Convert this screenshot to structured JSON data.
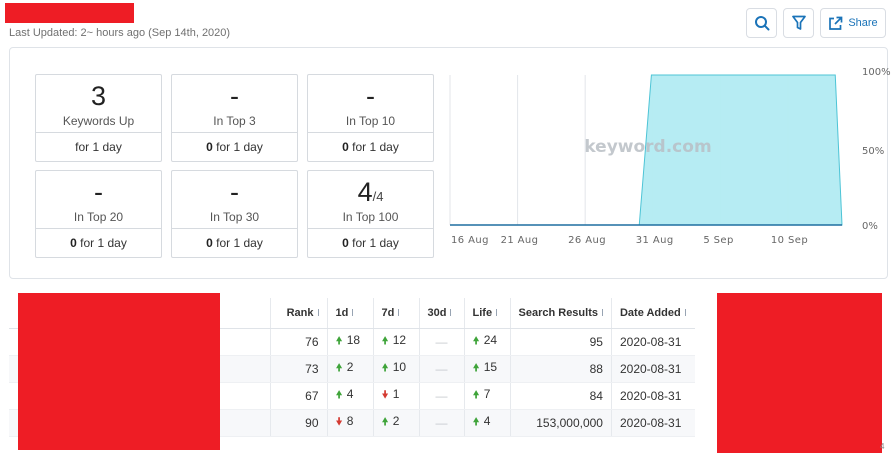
{
  "header": {
    "last_updated": "Last Updated: 2~ hours ago (Sep 14th, 2020)",
    "share_label": "Share",
    "icons": [
      "search-icon",
      "filter-icon",
      "share-icon"
    ]
  },
  "stats": [
    {
      "value": "3",
      "total": "",
      "label": "Keywords Up",
      "count": "",
      "period": "for 1 day"
    },
    {
      "value": "-",
      "total": "",
      "label": "In Top 3",
      "count": "0",
      "period": " for 1 day"
    },
    {
      "value": "-",
      "total": "",
      "label": "In Top 10",
      "count": "0",
      "period": " for 1 day"
    },
    {
      "value": "-",
      "total": "",
      "label": "In Top 20",
      "count": "0",
      "period": " for 1 day"
    },
    {
      "value": "-",
      "total": "",
      "label": "In Top 30",
      "count": "0",
      "period": " for 1 day"
    },
    {
      "value": "4",
      "total": "/4",
      "label": "In Top 100",
      "count": "0",
      "period": " for 1 day"
    }
  ],
  "chart_data": {
    "type": "area",
    "watermark": "keyword.com",
    "x_ticks": [
      "16 Aug",
      "21 Aug",
      "26 Aug",
      "31 Aug",
      "5 Sep",
      "10 Sep"
    ],
    "x_tick_days": [
      0,
      5,
      10,
      15,
      20,
      25
    ],
    "y_ticks": [
      "100%",
      "50%",
      "0%"
    ],
    "ylim": [
      0,
      100
    ],
    "xlim_days": [
      0,
      29
    ],
    "series": [
      {
        "x_days": [
          0,
          14,
          14.9,
          28.5,
          29
        ],
        "values": [
          0,
          0,
          100,
          100,
          0
        ]
      }
    ],
    "colors": {
      "fill": "#b2ebf2",
      "line": "#4dc4d6",
      "baseline": "#1f6fa0",
      "grid": "#e3e6ea"
    }
  },
  "table": {
    "columns": [
      "Rank",
      "1d",
      "7d",
      "30d",
      "Life",
      "Search Results",
      "Date Added"
    ],
    "rows": [
      {
        "rank": "76",
        "d1": {
          "dir": "up",
          "v": "18"
        },
        "d7": {
          "dir": "up",
          "v": "12"
        },
        "d30": "—",
        "life": {
          "dir": "up",
          "v": "24"
        },
        "results": "95",
        "date": "2020-08-31"
      },
      {
        "rank": "73",
        "d1": {
          "dir": "up",
          "v": "2"
        },
        "d7": {
          "dir": "up",
          "v": "10"
        },
        "d30": "—",
        "life": {
          "dir": "up",
          "v": "15"
        },
        "results": "88",
        "date": "2020-08-31"
      },
      {
        "rank": "67",
        "d1": {
          "dir": "up",
          "v": "4"
        },
        "d7": {
          "dir": "down",
          "v": "1"
        },
        "d30": "—",
        "life": {
          "dir": "up",
          "v": "7"
        },
        "results": "84",
        "date": "2020-08-31"
      },
      {
        "rank": "90",
        "d1": {
          "dir": "down",
          "v": "8"
        },
        "d7": {
          "dir": "up",
          "v": "2"
        },
        "d30": "—",
        "life": {
          "dir": "up",
          "v": "4"
        },
        "results": "153,000,000",
        "date": "2020-08-31"
      }
    ]
  },
  "footer": {
    "corner_number": "4"
  }
}
